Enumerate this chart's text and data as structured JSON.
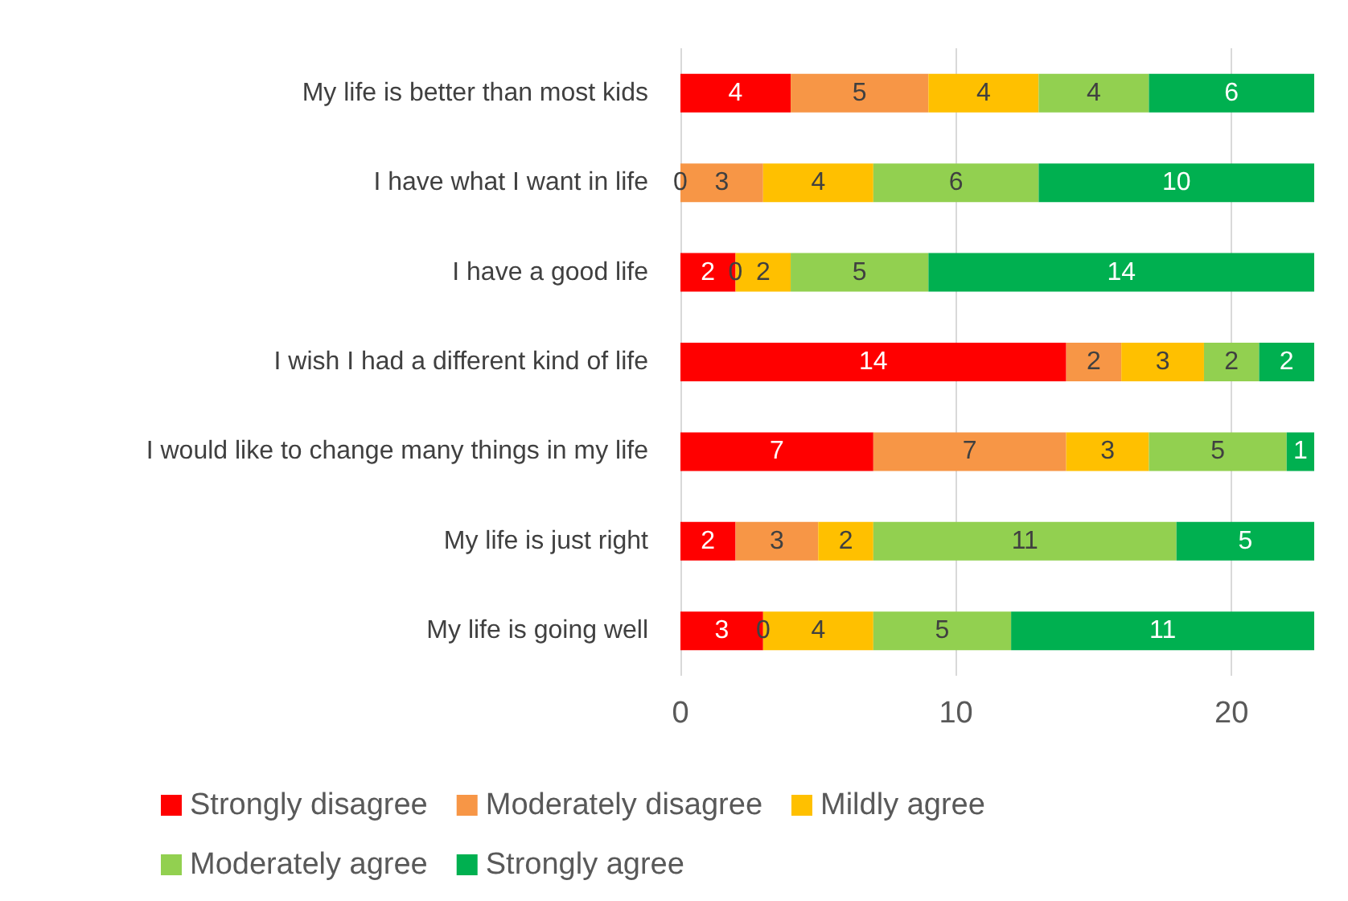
{
  "chart_data": {
    "type": "bar",
    "orientation": "horizontal",
    "stacked": true,
    "grid": "x",
    "legend": "bottom",
    "categories": [
      "My life is better than most kids",
      "I have what I want in life",
      "I have a good life",
      "I wish I had a different kind of life",
      "I would like to change many things in my life",
      "My life is just right",
      "My life is going well"
    ],
    "xlim": [
      0,
      23
    ],
    "xticks": [
      0,
      10,
      20
    ],
    "series": [
      {
        "name": "Strongly disagree",
        "color": "#ff0000",
        "values": [
          4,
          0,
          2,
          14,
          7,
          2,
          3
        ],
        "value_labels": [
          "4",
          null,
          "2",
          "14",
          "7",
          "2",
          "3"
        ]
      },
      {
        "name": "Moderately disagree",
        "color": "#f79646",
        "values": [
          5,
          3,
          0,
          2,
          7,
          3,
          0
        ],
        "value_labels": [
          "5",
          "3",
          null,
          "2",
          "7",
          "3",
          null
        ]
      },
      {
        "name": "Mildly agree",
        "color": "#ffc000",
        "values": [
          4,
          4,
          2,
          3,
          3,
          2,
          4
        ],
        "value_labels": [
          "4",
          "4",
          "2",
          "3",
          "3",
          "2",
          "4"
        ]
      },
      {
        "name": "Moderately agree",
        "color": "#92d050",
        "values": [
          4,
          6,
          5,
          2,
          5,
          11,
          5
        ],
        "value_labels": [
          "4",
          "6",
          "5",
          "2",
          "5",
          "11",
          "5"
        ]
      },
      {
        "name": "Strongly agree",
        "color": "#00b050",
        "values": [
          6,
          10,
          14,
          2,
          1,
          5,
          11
        ],
        "value_labels": [
          "6",
          "10",
          "14",
          "2",
          "1",
          "5",
          "11"
        ]
      }
    ],
    "annotations": [
      {
        "text": "0",
        "x": 0,
        "y": "I have what I want in life"
      },
      {
        "text": "0",
        "x": 2,
        "y": "I have a good life"
      },
      {
        "text": "0",
        "x": 3,
        "y": "My life is going well"
      }
    ]
  }
}
